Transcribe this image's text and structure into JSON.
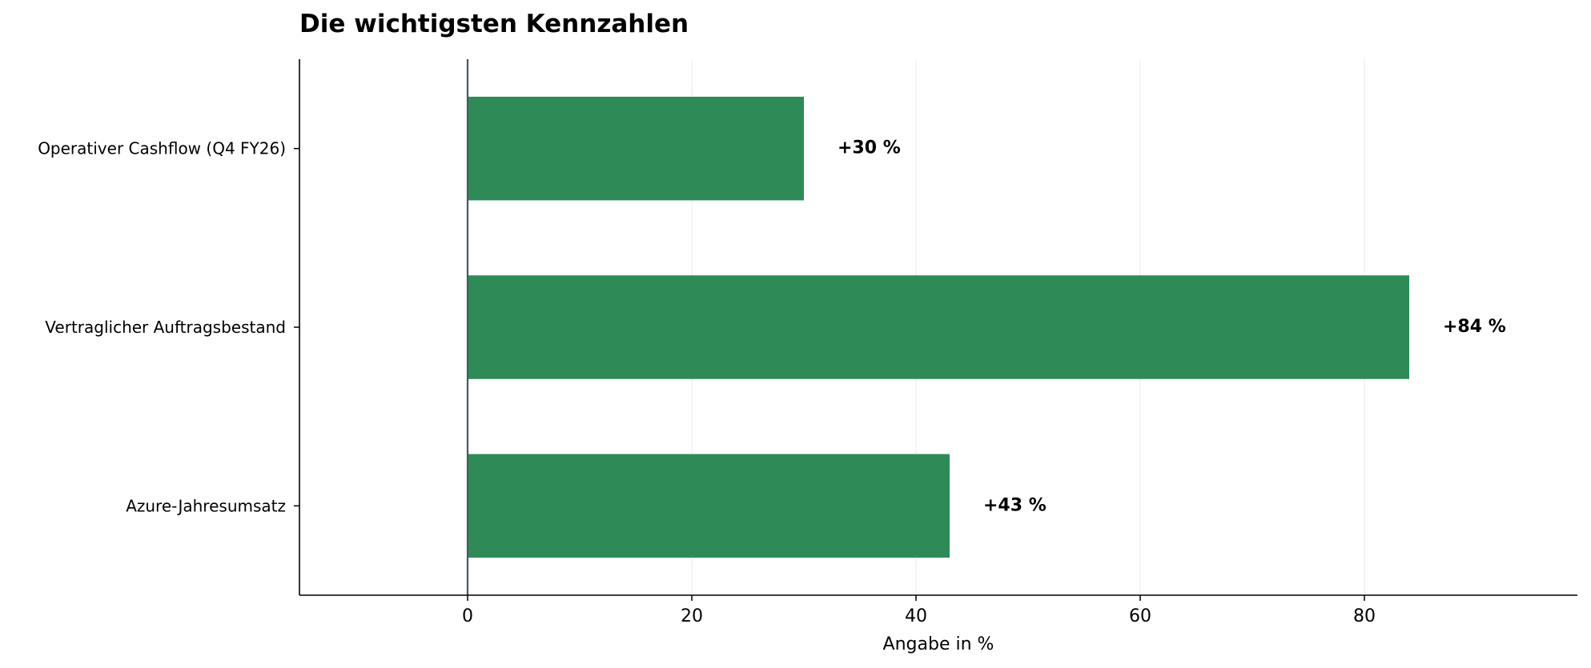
{
  "chart_data": {
    "type": "bar",
    "orientation": "horizontal",
    "title": "Die wichtigsten Kennzahlen",
    "xlabel": "Angabe in %",
    "ylabel": "",
    "xlim": [
      -15,
      99
    ],
    "xticks": [
      0,
      20,
      40,
      60,
      80
    ],
    "grid": true,
    "categories": [
      "Operativer Cashflow (Q4 FY26)",
      "Vertraglicher Auftragsbestand",
      "Azure-Jahresumsatz"
    ],
    "values": [
      30,
      84,
      43
    ],
    "data_labels": [
      "+30 %",
      "+84 %",
      "+43 %"
    ],
    "bar_color": "#2e8b57",
    "zero_line_color": "#4a5568",
    "grid_color": "#e8e8e8"
  }
}
